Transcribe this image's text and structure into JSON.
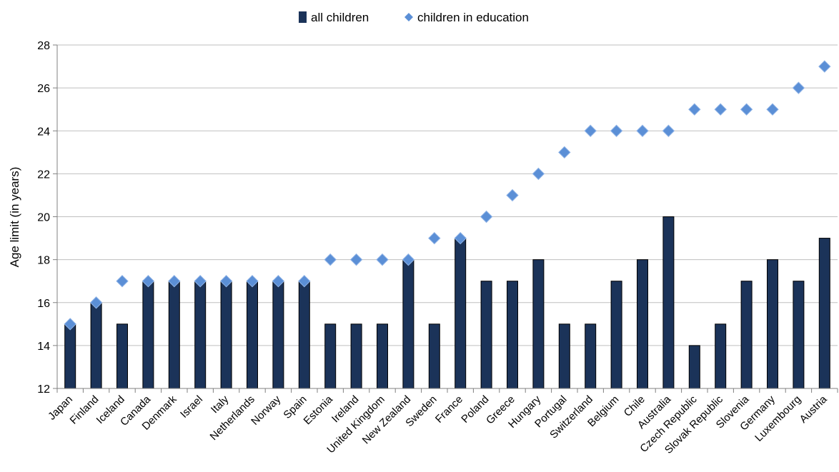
{
  "chart_data": {
    "type": "bar",
    "title": "",
    "xlabel": "",
    "ylabel": "Age limit (in years)",
    "ylim": [
      12,
      28
    ],
    "yticks": [
      12,
      14,
      16,
      18,
      20,
      22,
      24,
      26,
      28
    ],
    "grid": true,
    "legend_position": "top-center",
    "categories": [
      "Japan",
      "Finland",
      "Iceland",
      "Canada",
      "Denmark",
      "Israel",
      "Italy",
      "Netherlands",
      "Norway",
      "Spain",
      "Estonia",
      "Ireland",
      "United Kingdom",
      "New Zealand",
      "Sweden",
      "France",
      "Poland",
      "Greece",
      "Hungary",
      "Portugal",
      "Switzerland",
      "Belgium",
      "Chile",
      "Australia",
      "Czech Republic",
      "Slovak Republic",
      "Slovenia",
      "Germany",
      "Luxembourg",
      "Austria"
    ],
    "series": [
      {
        "name": "all children",
        "type": "bar",
        "color": "#1b3359",
        "values": [
          15,
          16,
          15,
          17,
          17,
          17,
          17,
          17,
          17,
          17,
          15,
          15,
          15,
          18,
          15,
          19,
          17,
          17,
          18,
          15,
          15,
          17,
          18,
          20,
          14,
          15,
          17,
          18,
          17,
          19
        ]
      },
      {
        "name": "children in education",
        "type": "scatter",
        "marker": "diamond",
        "color": "#5b8fd6",
        "values": [
          15,
          16,
          17,
          17,
          17,
          17,
          17,
          17,
          17,
          17,
          18,
          18,
          18,
          18,
          19,
          19,
          20,
          21,
          22,
          23,
          24,
          24,
          24,
          24,
          25,
          25,
          25,
          25,
          26,
          27
        ]
      }
    ]
  }
}
